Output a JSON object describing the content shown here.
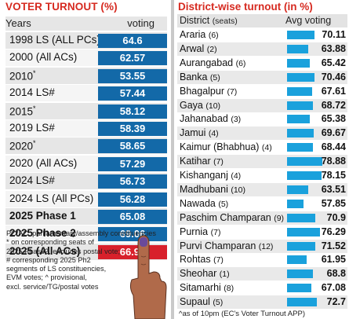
{
  "left": {
    "title": "VOTER TURNOUT (%)",
    "col_years": "Years",
    "col_voting": "voting",
    "notes": [
      "PC/AC: parliamentary/assembly constituencies",
      "* on corresponding seats of",
      "2025 Phase2, excludes postal vote;",
      "# corresponding 2025 Ph2",
      "segments of LS constituencies,",
      "EVM votes; ^ provisional,",
      "excl. service/TG/postal votes"
    ]
  },
  "right": {
    "title": "District-wise turnout (in %)",
    "col_district": "District",
    "col_district_sub": "(seats)",
    "col_voting": "Avg voting",
    "note": "^as of 10pm (EC's Voter Turnout APP)"
  },
  "chart_data": [
    {
      "type": "table",
      "title": "VOTER TURNOUT (%)",
      "columns": [
        "Years",
        "voting"
      ],
      "rows": [
        {
          "label": "1998 LS (ALL PCs)",
          "sup": "",
          "value": "64.6",
          "bold": false,
          "highlight": false
        },
        {
          "label": "2000 (All ACs)",
          "sup": "",
          "value": "62.57",
          "bold": false,
          "highlight": false
        },
        {
          "label": "2010",
          "sup": "*",
          "value": "53.55",
          "bold": false,
          "highlight": false
        },
        {
          "label": "2014 LS#",
          "sup": "",
          "value": "57.44",
          "bold": false,
          "highlight": false
        },
        {
          "label": "2015",
          "sup": "*",
          "value": "58.12",
          "bold": false,
          "highlight": false
        },
        {
          "label": "2019 LS#",
          "sup": "",
          "value": "58.39",
          "bold": false,
          "highlight": false
        },
        {
          "label": "2020",
          "sup": "*",
          "value": "58.65",
          "bold": false,
          "highlight": false
        },
        {
          "label": "2020 (All ACs)",
          "sup": "",
          "value": "57.29",
          "bold": false,
          "highlight": false
        },
        {
          "label": "2024 LS#",
          "sup": "",
          "value": "56.73",
          "bold": false,
          "highlight": false
        },
        {
          "label": "2024 LS (All PCs)",
          "sup": "",
          "value": "56.28",
          "bold": false,
          "highlight": false
        },
        {
          "label": "2025 Phase 1",
          "sup": "",
          "value": "65.08",
          "bold": true,
          "highlight": false
        },
        {
          "label": "2025 Phase 2",
          "sup": "",
          "value": "69.06",
          "bold": true,
          "highlight": false
        },
        {
          "label": "2025 (All ACs)",
          "sup": "",
          "value": "66.91",
          "bold": true,
          "highlight": true
        }
      ],
      "colors": {
        "value_box": "#1369a8",
        "highlight_box": "#d8202b",
        "title": "#d62a20"
      }
    },
    {
      "type": "bar",
      "title": "District-wise turnout (in %)",
      "xlabel": "District (seats)",
      "ylabel": "Avg voting",
      "categories": [
        "Araria",
        "Arwal",
        "Aurangabad",
        "Banka",
        "Bhagalpur",
        "Gaya",
        "Jahanabad",
        "Jamui",
        "Kaimur (Bhabhua)",
        "Katihar",
        "Kishanganj",
        "Madhubani",
        "Nawada",
        "Paschim Champaran",
        "Purnia",
        "Purvi Champaran",
        "Rohtas",
        "Sheohar",
        "Sitamarhi",
        "Supaul"
      ],
      "seats": [
        "(6)",
        "(2)",
        "(6)",
        "(5)",
        "(7)",
        "(10)",
        "(3)",
        "(4)",
        "(4)",
        "(7)",
        "(4)",
        "(10)",
        "(5)",
        "(9)",
        "(7)",
        "(12)",
        "(7)",
        "(1)",
        "(8)",
        "(5)"
      ],
      "values": [
        70.11,
        63.88,
        65.42,
        70.46,
        67.61,
        68.72,
        65.38,
        69.67,
        68.44,
        78.88,
        78.15,
        63.51,
        57.85,
        70.9,
        76.29,
        71.52,
        61.95,
        68.8,
        67.08,
        72.7
      ],
      "value_labels": [
        "70.11",
        "63.88",
        "65.42",
        "70.46",
        "67.61",
        "68.72",
        "65.38",
        "69.67",
        "68.44",
        "78.88",
        "78.15",
        "63.51",
        "57.85",
        "70.9",
        "76.29",
        "71.52",
        "61.95",
        "68.8",
        "67.08",
        "72.7"
      ],
      "colors": {
        "bar": "#1aa1dc"
      }
    }
  ]
}
